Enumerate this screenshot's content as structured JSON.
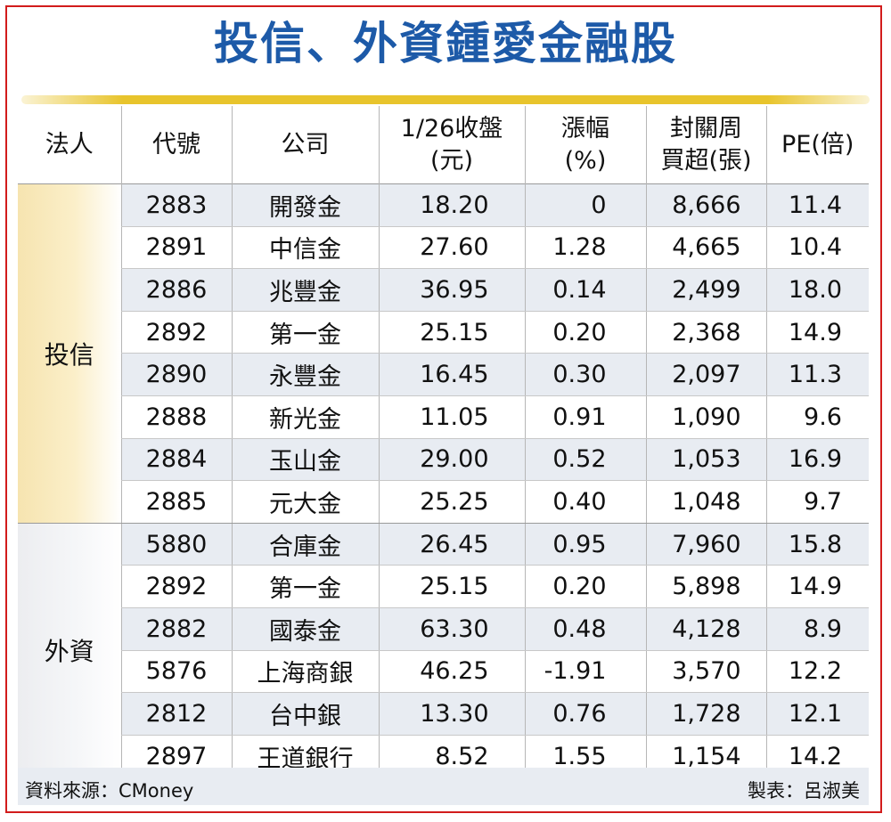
{
  "title": "投信、外資鍾愛金融股",
  "columns": [
    "法人",
    "代號",
    "公司",
    "1/26收盤\n(元)",
    "漲幅\n(%)",
    "封關周\n買超(張)",
    "PE(倍)"
  ],
  "groups": [
    {
      "name": "投信",
      "rows": [
        {
          "code": "2883",
          "company": "開發金",
          "close": "18.20",
          "change": "0",
          "net_buy": "8,666",
          "pe": "11.4"
        },
        {
          "code": "2891",
          "company": "中信金",
          "close": "27.60",
          "change": "1.28",
          "net_buy": "4,665",
          "pe": "10.4"
        },
        {
          "code": "2886",
          "company": "兆豐金",
          "close": "36.95",
          "change": "0.14",
          "net_buy": "2,499",
          "pe": "18.0"
        },
        {
          "code": "2892",
          "company": "第一金",
          "close": "25.15",
          "change": "0.20",
          "net_buy": "2,368",
          "pe": "14.9"
        },
        {
          "code": "2890",
          "company": "永豐金",
          "close": "16.45",
          "change": "0.30",
          "net_buy": "2,097",
          "pe": "11.3"
        },
        {
          "code": "2888",
          "company": "新光金",
          "close": "11.05",
          "change": "0.91",
          "net_buy": "1,090",
          "pe": "9.6"
        },
        {
          "code": "2884",
          "company": "玉山金",
          "close": "29.00",
          "change": "0.52",
          "net_buy": "1,053",
          "pe": "16.9"
        },
        {
          "code": "2885",
          "company": "元大金",
          "close": "25.25",
          "change": "0.40",
          "net_buy": "1,048",
          "pe": "9.7"
        }
      ]
    },
    {
      "name": "外資",
      "rows": [
        {
          "code": "5880",
          "company": "合庫金",
          "close": "26.45",
          "change": "0.95",
          "net_buy": "7,960",
          "pe": "15.8"
        },
        {
          "code": "2892",
          "company": "第一金",
          "close": "25.15",
          "change": "0.20",
          "net_buy": "5,898",
          "pe": "14.9"
        },
        {
          "code": "2882",
          "company": "國泰金",
          "close": "63.30",
          "change": "0.48",
          "net_buy": "4,128",
          "pe": "8.9"
        },
        {
          "code": "5876",
          "company": "上海商銀",
          "close": "46.25",
          "change": "-1.91",
          "net_buy": "3,570",
          "pe": "12.2"
        },
        {
          "code": "2812",
          "company": "台中銀",
          "close": "13.30",
          "change": "0.76",
          "net_buy": "1,728",
          "pe": "12.1"
        },
        {
          "code": "2897",
          "company": "王道銀行",
          "close": "8.52",
          "change": "1.55",
          "net_buy": "1,154",
          "pe": "14.2"
        }
      ]
    }
  ],
  "footer": {
    "source": "資料來源：CMoney",
    "maker": "製表：呂淑美"
  },
  "colors": {
    "title": "#1d5aa8",
    "frame": "#d21c1c",
    "gold_bar": "#e8c42c",
    "row_stripe": "#e8ecf2"
  }
}
